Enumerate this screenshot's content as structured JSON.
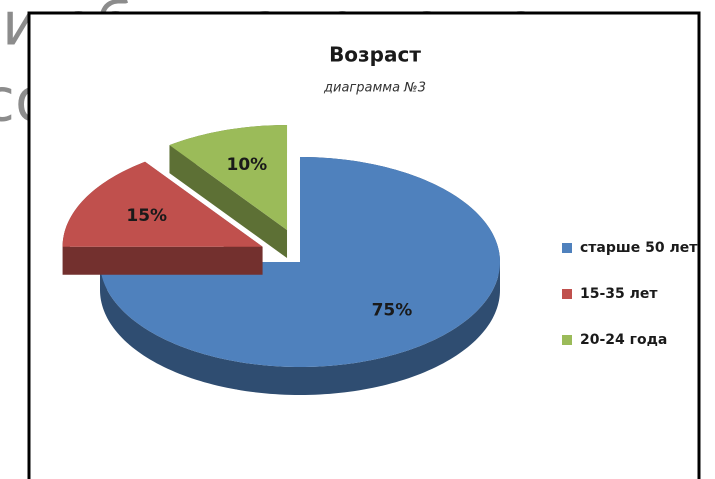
{
  "background_text": [
    "и обилизирующем",
    "со"
  ],
  "chart_data": {
    "type": "pie",
    "title": "Возраст",
    "subtitle": "диаграмма №3",
    "categories": [
      "старше 50 лет",
      "15-35 лет",
      "20-24 года"
    ],
    "values": [
      75,
      15,
      10
    ],
    "value_labels": [
      "75%",
      "15%",
      "10%"
    ],
    "colors": [
      "#4f81bd",
      "#c0504d",
      "#9bbb59"
    ],
    "legend": "right",
    "exploded": [
      false,
      true,
      true
    ],
    "three_d": true
  }
}
